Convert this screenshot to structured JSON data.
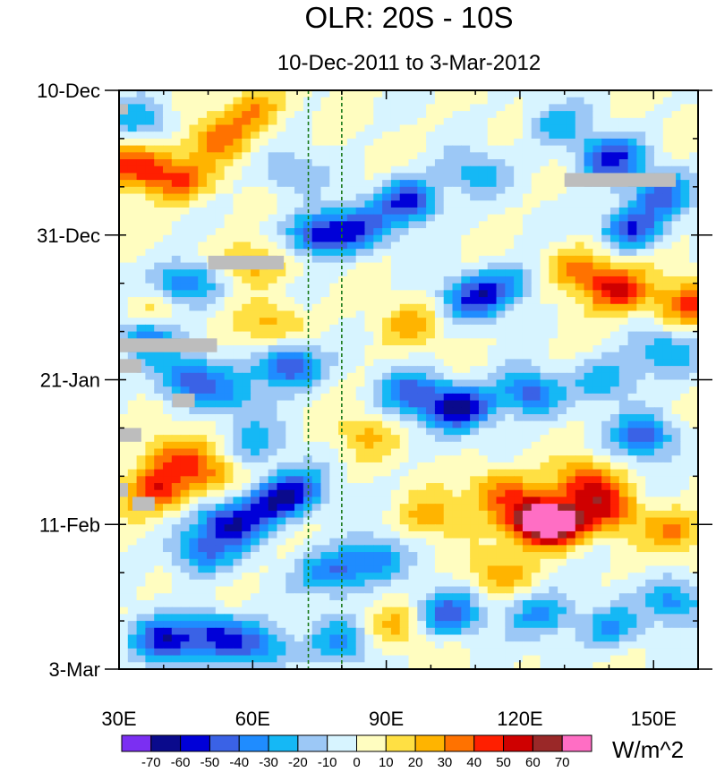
{
  "chart_data": {
    "type": "heatmap",
    "title": "OLR: 20S - 10S",
    "subtitle": "10-Dec-2011 to 3-Mar-2012",
    "x_axis": {
      "range": [
        30,
        160
      ],
      "ticks": [
        {
          "value": 30,
          "label": "30E"
        },
        {
          "value": 60,
          "label": "60E"
        },
        {
          "value": 90,
          "label": "90E"
        },
        {
          "value": 120,
          "label": "120E"
        },
        {
          "value": 150,
          "label": "150E"
        }
      ],
      "minor_step": 10
    },
    "y_axis": {
      "range_days": [
        0,
        84
      ],
      "direction": "time increases downward",
      "ticks": [
        {
          "day": 0,
          "label": "10-Dec"
        },
        {
          "day": 21,
          "label": "31-Dec"
        },
        {
          "day": 42,
          "label": "21-Jan"
        },
        {
          "day": 63,
          "label": "11-Feb"
        },
        {
          "day": 84,
          "label": "3-Mar"
        }
      ],
      "minor_step_days": 7
    },
    "reference_lines_lon": [
      72.5,
      80
    ],
    "colorbar": {
      "unit_label": "W/m^2",
      "levels": [
        -70,
        -60,
        -50,
        -40,
        -30,
        -20,
        -10,
        0,
        10,
        20,
        30,
        40,
        50,
        60,
        70
      ],
      "colors": [
        "#7b2ff2",
        "#0a0a8c",
        "#0000d8",
        "#3a62e6",
        "#1f8cff",
        "#15b8f5",
        "#9cc8f6",
        "#d7f4ff",
        "#fffdc0",
        "#ffe043",
        "#ffb400",
        "#ff7200",
        "#ff1f00",
        "#cf0000",
        "#9a2828",
        "#ff6ec4"
      ]
    },
    "anomalies": [
      {
        "lon": 35,
        "day": 4,
        "value": -30
      },
      {
        "lon": 34,
        "day": 11,
        "value": 50
      },
      {
        "lon": 44,
        "day": 13,
        "value": 40
      },
      {
        "lon": 52,
        "day": 7,
        "value": 30
      },
      {
        "lon": 60,
        "day": 3,
        "value": 30
      },
      {
        "lon": 68,
        "day": 12,
        "value": -20
      },
      {
        "lon": 95,
        "day": 16,
        "value": -55
      },
      {
        "lon": 84,
        "day": 20,
        "value": -40
      },
      {
        "lon": 75,
        "day": 21,
        "value": -55
      },
      {
        "lon": 110,
        "day": 12,
        "value": -25
      },
      {
        "lon": 140,
        "day": 10,
        "value": -55
      },
      {
        "lon": 152,
        "day": 15,
        "value": -40
      },
      {
        "lon": 128,
        "day": 5,
        "value": -25
      },
      {
        "lon": 145,
        "day": 20,
        "value": -50
      },
      {
        "lon": 45,
        "day": 28,
        "value": -45
      },
      {
        "lon": 60,
        "day": 25,
        "value": 30
      },
      {
        "lon": 65,
        "day": 34,
        "value": 25
      },
      {
        "lon": 38,
        "day": 32,
        "value": 20
      },
      {
        "lon": 95,
        "day": 34,
        "value": 20
      },
      {
        "lon": 110,
        "day": 30,
        "value": -50
      },
      {
        "lon": 118,
        "day": 28,
        "value": -25
      },
      {
        "lon": 142,
        "day": 29,
        "value": 50
      },
      {
        "lon": 157,
        "day": 31,
        "value": 40
      },
      {
        "lon": 134,
        "day": 26,
        "value": 35
      },
      {
        "lon": 45,
        "day": 42,
        "value": -45
      },
      {
        "lon": 36,
        "day": 36,
        "value": -40
      },
      {
        "lon": 55,
        "day": 44,
        "value": -25
      },
      {
        "lon": 68,
        "day": 40,
        "value": -55
      },
      {
        "lon": 107,
        "day": 46,
        "value": -65
      },
      {
        "lon": 96,
        "day": 44,
        "value": -45
      },
      {
        "lon": 122,
        "day": 44,
        "value": -45
      },
      {
        "lon": 140,
        "day": 42,
        "value": -30
      },
      {
        "lon": 148,
        "day": 50,
        "value": -45
      },
      {
        "lon": 152,
        "day": 38,
        "value": -30
      },
      {
        "lon": 60,
        "day": 51,
        "value": -25
      },
      {
        "lon": 85,
        "day": 50,
        "value": 20
      },
      {
        "lon": 38,
        "day": 58,
        "value": 45
      },
      {
        "lon": 50,
        "day": 56,
        "value": 30
      },
      {
        "lon": 42,
        "day": 53,
        "value": 35
      },
      {
        "lon": 55,
        "day": 63,
        "value": -55
      },
      {
        "lon": 64,
        "day": 60,
        "value": -45
      },
      {
        "lon": 70,
        "day": 58,
        "value": -40
      },
      {
        "lon": 48,
        "day": 67,
        "value": -40
      },
      {
        "lon": 123,
        "day": 62,
        "value": 60
      },
      {
        "lon": 128,
        "day": 63,
        "value": 70
      },
      {
        "lon": 140,
        "day": 61,
        "value": 40
      },
      {
        "lon": 115,
        "day": 58,
        "value": 35
      },
      {
        "lon": 135,
        "day": 57,
        "value": 45
      },
      {
        "lon": 155,
        "day": 64,
        "value": 30
      },
      {
        "lon": 100,
        "day": 62,
        "value": 25
      },
      {
        "lon": 78,
        "day": 70,
        "value": -40
      },
      {
        "lon": 87,
        "day": 68,
        "value": -35
      },
      {
        "lon": 104,
        "day": 76,
        "value": -45
      },
      {
        "lon": 125,
        "day": 76,
        "value": -35
      },
      {
        "lon": 140,
        "day": 78,
        "value": -30
      },
      {
        "lon": 155,
        "day": 74,
        "value": -35
      },
      {
        "lon": 40,
        "day": 80,
        "value": -55
      },
      {
        "lon": 52,
        "day": 79,
        "value": -50
      },
      {
        "lon": 62,
        "day": 81,
        "value": -40
      },
      {
        "lon": 80,
        "day": 80,
        "value": -30
      },
      {
        "lon": 92,
        "day": 78,
        "value": 20
      },
      {
        "lon": 115,
        "day": 70,
        "value": 25
      }
    ],
    "missing_data_blocks": [
      {
        "lon_range": [
          30,
          32
        ],
        "day_range": [
          2,
          3.5
        ]
      },
      {
        "lon_range": [
          130,
          155
        ],
        "day_range": [
          12,
          14
        ]
      },
      {
        "lon_range": [
          50,
          67
        ],
        "day_range": [
          24,
          26
        ]
      },
      {
        "lon_range": [
          30,
          52
        ],
        "day_range": [
          36,
          38
        ]
      },
      {
        "lon_range": [
          30,
          35
        ],
        "day_range": [
          39,
          41
        ]
      },
      {
        "lon_range": [
          42,
          47
        ],
        "day_range": [
          44,
          46
        ]
      },
      {
        "lon_range": [
          30,
          35
        ],
        "day_range": [
          49,
          51
        ]
      },
      {
        "lon_range": [
          30,
          32
        ],
        "day_range": [
          57,
          59
        ]
      },
      {
        "lon_range": [
          33,
          38
        ],
        "day_range": [
          59,
          61
        ]
      }
    ]
  }
}
